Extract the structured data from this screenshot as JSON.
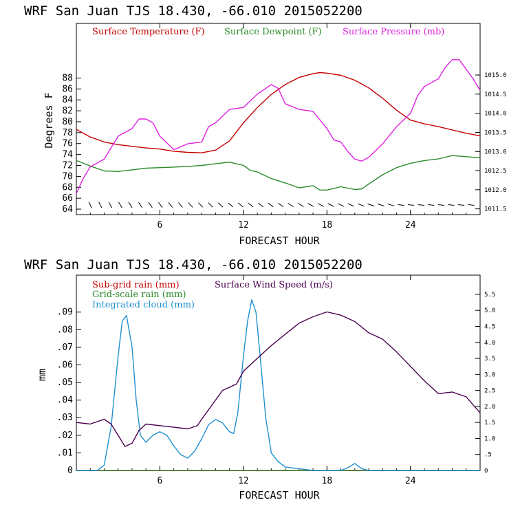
{
  "chart_data": [
    {
      "type": "line",
      "title": "WRF   San Juan TJS  18.430, -66.010  2015052200",
      "xlabel": "FORECAST HOUR",
      "ylabel": "Degrees F",
      "xlim": [
        0,
        29
      ],
      "ylim": [
        63,
        98
      ],
      "y2lim": [
        1011.35,
        1016.35
      ],
      "x_ticks": [
        6,
        12,
        18,
        24
      ],
      "y_ticks": [
        64,
        66,
        68,
        70,
        72,
        74,
        76,
        78,
        80,
        82,
        84,
        86,
        88
      ],
      "y2_ticks": [
        "1011.5",
        "1012.0",
        "1012.5",
        "1013.0",
        "1013.5",
        "1014.0",
        "1014.5",
        "1015.0"
      ],
      "y2_tick_values": [
        1011.5,
        1012.0,
        1012.5,
        1013.0,
        1013.5,
        1014.0,
        1014.5,
        1015.0
      ],
      "grid": false,
      "legend_position": "top",
      "series": [
        {
          "name": "Surface Temperature (F)",
          "color": "#c40000",
          "axis": "left",
          "points": [
            [
              0,
              78.6
            ],
            [
              1,
              77.2
            ],
            [
              2,
              76.3
            ],
            [
              3,
              75.8
            ],
            [
              4,
              75.5
            ],
            [
              5,
              75.2
            ],
            [
              6,
              75.0
            ],
            [
              7,
              74.6
            ],
            [
              8,
              74.4
            ],
            [
              9,
              74.3
            ],
            [
              10,
              74.8
            ],
            [
              11,
              76.5
            ],
            [
              12,
              79.8
            ],
            [
              13,
              82.6
            ],
            [
              14,
              85.0
            ],
            [
              15,
              86.8
            ],
            [
              16,
              88.1
            ],
            [
              17,
              88.8
            ],
            [
              17.5,
              89.0
            ],
            [
              18,
              88.9
            ],
            [
              19,
              88.5
            ],
            [
              20,
              87.6
            ],
            [
              21,
              86.2
            ],
            [
              22,
              84.3
            ],
            [
              23,
              82.1
            ],
            [
              24,
              80.3
            ],
            [
              25,
              79.6
            ],
            [
              26,
              79.1
            ],
            [
              27,
              78.5
            ],
            [
              28,
              77.9
            ],
            [
              29,
              77.4
            ]
          ]
        },
        {
          "name": "Surface Dewpoint (F)",
          "color": "#2a8a2a",
          "axis": "left",
          "points": [
            [
              0,
              72.9
            ],
            [
              1,
              71.9
            ],
            [
              2,
              71.0
            ],
            [
              3,
              70.9
            ],
            [
              4,
              71.2
            ],
            [
              5,
              71.5
            ],
            [
              6,
              71.6
            ],
            [
              7,
              71.7
            ],
            [
              8,
              71.8
            ],
            [
              9,
              72.0
            ],
            [
              10,
              72.3
            ],
            [
              11,
              72.6
            ],
            [
              12,
              72.0
            ],
            [
              12.5,
              71.1
            ],
            [
              13,
              70.8
            ],
            [
              14,
              69.6
            ],
            [
              15,
              68.8
            ],
            [
              16,
              67.9
            ],
            [
              17,
              68.3
            ],
            [
              17.5,
              67.5
            ],
            [
              18,
              67.5
            ],
            [
              19,
              68.1
            ],
            [
              20,
              67.6
            ],
            [
              20.5,
              67.7
            ],
            [
              21,
              68.6
            ],
            [
              22,
              70.3
            ],
            [
              23,
              71.6
            ],
            [
              24,
              72.4
            ],
            [
              25,
              72.9
            ],
            [
              26,
              73.2
            ],
            [
              27,
              73.8
            ],
            [
              28,
              73.6
            ],
            [
              29,
              73.4
            ]
          ]
        },
        {
          "name": "Surface Pressure (mb)",
          "color": "#e020e0",
          "axis": "right",
          "points": [
            [
              0,
              1011.9
            ],
            [
              0.5,
              1012.3
            ],
            [
              1,
              1012.6
            ],
            [
              2,
              1012.8
            ],
            [
              3,
              1013.4
            ],
            [
              4,
              1013.6
            ],
            [
              4.5,
              1013.85
            ],
            [
              5,
              1013.85
            ],
            [
              5.5,
              1013.75
            ],
            [
              6,
              1013.4
            ],
            [
              7,
              1013.05
            ],
            [
              8,
              1013.2
            ],
            [
              9,
              1013.25
            ],
            [
              9.5,
              1013.65
            ],
            [
              10,
              1013.75
            ],
            [
              11,
              1014.1
            ],
            [
              12,
              1014.15
            ],
            [
              13,
              1014.5
            ],
            [
              14,
              1014.75
            ],
            [
              14.5,
              1014.65
            ],
            [
              15,
              1014.25
            ],
            [
              16,
              1014.1
            ],
            [
              17,
              1014.05
            ],
            [
              18,
              1013.6
            ],
            [
              18.5,
              1013.3
            ],
            [
              19,
              1013.25
            ],
            [
              19.5,
              1013.0
            ],
            [
              20,
              1012.8
            ],
            [
              20.5,
              1012.75
            ],
            [
              21,
              1012.85
            ],
            [
              22,
              1013.2
            ],
            [
              23,
              1013.65
            ],
            [
              24,
              1014.0
            ],
            [
              24.5,
              1014.45
            ],
            [
              25,
              1014.7
            ],
            [
              26,
              1014.9
            ],
            [
              26.5,
              1015.2
            ],
            [
              27,
              1015.4
            ],
            [
              27.5,
              1015.4
            ],
            [
              28,
              1015.15
            ],
            [
              28.5,
              1014.9
            ],
            [
              29,
              1014.6
            ]
          ]
        }
      ],
      "wind_barbs": {
        "description_hidden": true,
        "count_near_zero_speed_from_hour": 23
      }
    },
    {
      "type": "line",
      "title": "WRF   San Juan TJS  18.430, -66.010  2015052200",
      "xlabel": "FORECAST HOUR",
      "ylabel": "mm",
      "xlim": [
        0,
        29
      ],
      "ylim": [
        0,
        0.111
      ],
      "y2lim": [
        0,
        6.1
      ],
      "x_ticks": [
        6,
        12,
        18,
        24
      ],
      "y_ticks": [
        "0",
        ".01",
        ".02",
        ".03",
        ".04",
        ".05",
        ".06",
        ".07",
        ".08",
        ".09"
      ],
      "y_tick_values": [
        0,
        0.01,
        0.02,
        0.03,
        0.04,
        0.05,
        0.06,
        0.07,
        0.08,
        0.09
      ],
      "y2_ticks": [
        "0",
        ".5",
        "1.0",
        "1.5",
        "2.0",
        "2.5",
        "3.0",
        "3.5",
        "4.0",
        "4.5",
        "5.0",
        "5.5"
      ],
      "y2_tick_values": [
        0,
        0.5,
        1.0,
        1.5,
        2.0,
        2.5,
        3.0,
        3.5,
        4.0,
        4.5,
        5.0,
        5.5
      ],
      "grid": false,
      "legend_position": "top-left",
      "series": [
        {
          "name": "Sub-grid rain (mm)",
          "color": "#c40000",
          "axis": "left",
          "points": [
            [
              0,
              0
            ],
            [
              29,
              0
            ]
          ]
        },
        {
          "name": "Grid-scale rain (mm)",
          "color": "#2a8a2a",
          "axis": "left",
          "points": [
            [
              0,
              0
            ],
            [
              29,
              0
            ]
          ]
        },
        {
          "name": "Integrated cloud (mm)",
          "color": "#1e90d0",
          "axis": "left",
          "points": [
            [
              0,
              0
            ],
            [
              1,
              0
            ],
            [
              1.5,
              0
            ],
            [
              2,
              0.003
            ],
            [
              2.5,
              0.025
            ],
            [
              3,
              0.065
            ],
            [
              3.3,
              0.085
            ],
            [
              3.6,
              0.088
            ],
            [
              4,
              0.07
            ],
            [
              4.3,
              0.04
            ],
            [
              4.6,
              0.02
            ],
            [
              5,
              0.016
            ],
            [
              5.5,
              0.02
            ],
            [
              6,
              0.022
            ],
            [
              6.5,
              0.02
            ],
            [
              7,
              0.014
            ],
            [
              7.5,
              0.009
            ],
            [
              8,
              0.007
            ],
            [
              8.5,
              0.011
            ],
            [
              9,
              0.018
            ],
            [
              9.5,
              0.026
            ],
            [
              10,
              0.029
            ],
            [
              10.5,
              0.027
            ],
            [
              11,
              0.022
            ],
            [
              11.3,
              0.021
            ],
            [
              11.6,
              0.033
            ],
            [
              12,
              0.065
            ],
            [
              12.3,
              0.085
            ],
            [
              12.6,
              0.097
            ],
            [
              12.9,
              0.09
            ],
            [
              13.2,
              0.065
            ],
            [
              13.6,
              0.03
            ],
            [
              14,
              0.01
            ],
            [
              14.5,
              0.005
            ],
            [
              15,
              0.002
            ],
            [
              16,
              0.001
            ],
            [
              17,
              0
            ],
            [
              18,
              0
            ],
            [
              19,
              0
            ],
            [
              19.6,
              0.002
            ],
            [
              20,
              0.004
            ],
            [
              20.5,
              0.001
            ],
            [
              21,
              0
            ],
            [
              29,
              0
            ]
          ]
        },
        {
          "name": "Surface Wind Speed (m/s)",
          "color": "#4a0050",
          "axis": "right",
          "points": [
            [
              0,
              1.5
            ],
            [
              1,
              1.45
            ],
            [
              2,
              1.6
            ],
            [
              2.5,
              1.45
            ],
            [
              3,
              1.1
            ],
            [
              3.5,
              0.75
            ],
            [
              4,
              0.85
            ],
            [
              4.5,
              1.25
            ],
            [
              5,
              1.45
            ],
            [
              6,
              1.4
            ],
            [
              7,
              1.35
            ],
            [
              8,
              1.3
            ],
            [
              8.7,
              1.4
            ],
            [
              9,
              1.6
            ],
            [
              10,
              2.2
            ],
            [
              10.5,
              2.5
            ],
            [
              11,
              2.6
            ],
            [
              11.5,
              2.7
            ],
            [
              12,
              3.1
            ],
            [
              13,
              3.5
            ],
            [
              14,
              3.9
            ],
            [
              15,
              4.25
            ],
            [
              16,
              4.6
            ],
            [
              17,
              4.8
            ],
            [
              18,
              4.95
            ],
            [
              19,
              4.85
            ],
            [
              20,
              4.65
            ],
            [
              21,
              4.3
            ],
            [
              22,
              4.1
            ],
            [
              23,
              3.7
            ],
            [
              24,
              3.25
            ],
            [
              25,
              2.8
            ],
            [
              26,
              2.4
            ],
            [
              27,
              2.45
            ],
            [
              28,
              2.3
            ],
            [
              29,
              1.8
            ]
          ]
        }
      ]
    }
  ]
}
